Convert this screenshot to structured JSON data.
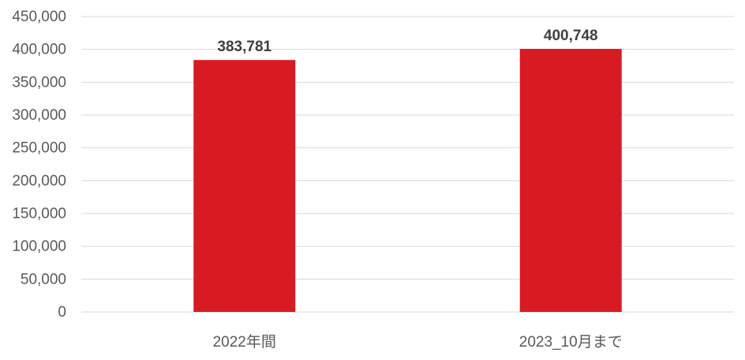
{
  "chart_data": {
    "type": "bar",
    "categories": [
      "2022年間",
      "2023_10月まで"
    ],
    "values": [
      383781,
      400748
    ],
    "data_labels": [
      "383,781",
      "400,748"
    ],
    "title": "",
    "xlabel": "",
    "ylabel": "",
    "ylim": [
      0,
      450000
    ],
    "yticks": [
      0,
      50000,
      100000,
      150000,
      200000,
      250000,
      300000,
      350000,
      400000,
      450000
    ],
    "ytick_labels": [
      "0",
      "50,000",
      "100,000",
      "150,000",
      "200,000",
      "250,000",
      "300,000",
      "350,000",
      "400,000",
      "450,000"
    ],
    "grid": true,
    "legend": "none",
    "colors": {
      "bar": "#d81b22",
      "grid": "#d9d9d9",
      "axis_text": "#595959",
      "data_label": "#404040"
    }
  }
}
